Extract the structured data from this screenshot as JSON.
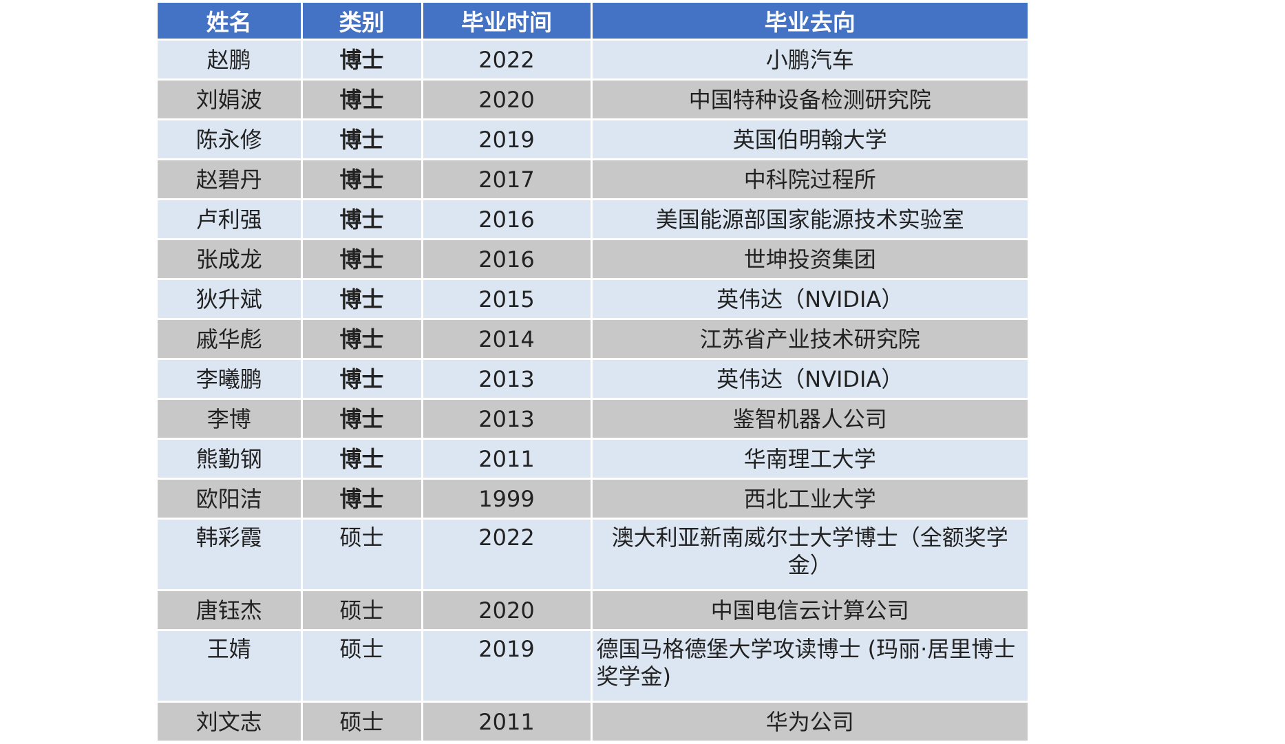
{
  "table": {
    "headers": [
      "姓名",
      "类别",
      "毕业时间",
      "毕业去向"
    ],
    "rows": [
      {
        "name": "赵鹏",
        "type": "博士",
        "year": "2022",
        "destination": "小鹏汽车"
      },
      {
        "name": "刘娟波",
        "type": "博士",
        "year": "2020",
        "destination": "中国特种设备检测研究院"
      },
      {
        "name": "陈永修",
        "type": "博士",
        "year": "2019",
        "destination": "英国伯明翰大学"
      },
      {
        "name": "赵碧丹",
        "type": "博士",
        "year": "2017",
        "destination": "中科院过程所"
      },
      {
        "name": "卢利强",
        "type": "博士",
        "year": "2016",
        "destination": "美国能源部国家能源技术实验室"
      },
      {
        "name": "张成龙",
        "type": "博士",
        "year": "2016",
        "destination": "世坤投资集团"
      },
      {
        "name": "狄升斌",
        "type": "博士",
        "year": "2015",
        "destination": "英伟达（NVIDIA）"
      },
      {
        "name": "戚华彪",
        "type": "博士",
        "year": "2014",
        "destination": "江苏省产业技术研究院"
      },
      {
        "name": "李曦鹏",
        "type": "博士",
        "year": "2013",
        "destination": "英伟达（NVIDIA）"
      },
      {
        "name": "李博",
        "type": "博士",
        "year": "2013",
        "destination": "鉴智机器人公司"
      },
      {
        "name": "熊勤钢",
        "type": "博士",
        "year": "2011",
        "destination": "华南理工大学"
      },
      {
        "name": "欧阳洁",
        "type": "博士",
        "year": "1999",
        "destination": "西北工业大学"
      },
      {
        "name": "韩彩霞",
        "type": "硕士",
        "year": "2022",
        "destination": "澳大利亚新南威尔士大学博士（全额奖学金）"
      },
      {
        "name": "唐钰杰",
        "type": "硕士",
        "year": "2020",
        "destination": "中国电信云计算公司"
      },
      {
        "name": "王婧",
        "type": "硕士",
        "year": "2019",
        "destination": "德国马格德堡大学攻读博士 (玛丽·居里博士奖学金)"
      },
      {
        "name": "刘文志",
        "type": "硕士",
        "year": "2011",
        "destination": "华为公司"
      }
    ]
  },
  "colors": {
    "header_bg": "#4472c4",
    "row_light": "#dce6f2",
    "row_dark": "#c8c8c8"
  }
}
